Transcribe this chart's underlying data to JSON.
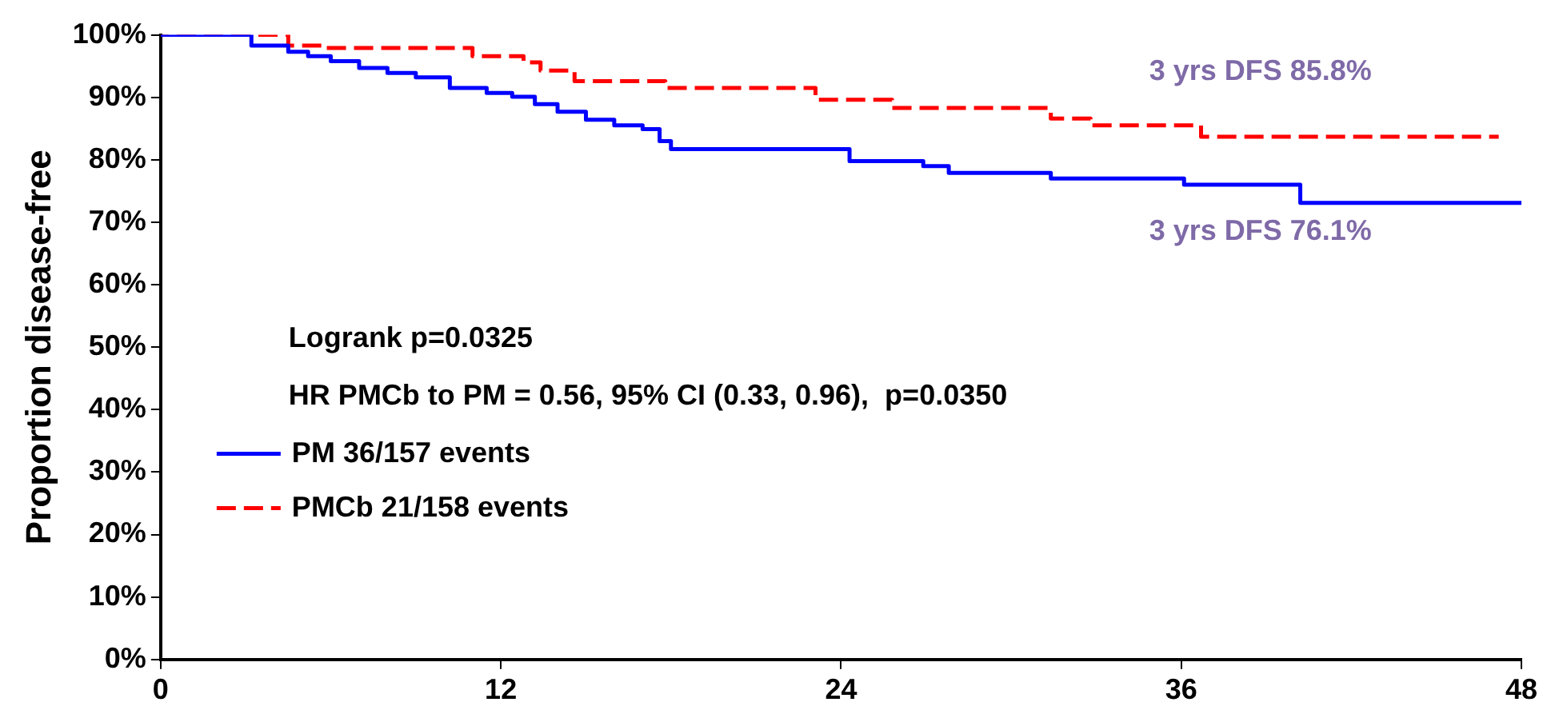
{
  "chart_data": {
    "type": "step",
    "ylabel": "Proportion disease-free",
    "xlim": [
      0,
      48
    ],
    "xticks": [
      0,
      12,
      24,
      36,
      48
    ],
    "ylim": [
      0,
      100
    ],
    "yticks": [
      {
        "value": 0,
        "label": "0%"
      },
      {
        "value": 10,
        "label": "10%"
      },
      {
        "value": 20,
        "label": "20%"
      },
      {
        "value": 30,
        "label": "30%"
      },
      {
        "value": 40,
        "label": "40%"
      },
      {
        "value": 50,
        "label": "50%"
      },
      {
        "value": 60,
        "label": "60%"
      },
      {
        "value": 70,
        "label": "70%"
      },
      {
        "value": 80,
        "label": "80%"
      },
      {
        "value": 90,
        "label": "90%"
      },
      {
        "value": 100,
        "label": "100%"
      }
    ],
    "grid": false,
    "legend": "left",
    "marker": "none",
    "series": [
      {
        "name": "PM 36/157 events",
        "color": "#0000ff",
        "line_style": "solid",
        "x": [
          0,
          3.2,
          4.5,
          5.2,
          6.0,
          7.0,
          8.0,
          9.0,
          10.2,
          11.5,
          12.4,
          13.2,
          14.0,
          15.0,
          16.0,
          17.0,
          17.6,
          18.0,
          24.3,
          26.9,
          27.8,
          31.4,
          36.1,
          40.2,
          48.0
        ],
        "values": [
          100,
          98.3,
          97.3,
          96.6,
          95.8,
          94.7,
          93.9,
          93.2,
          91.5,
          90.7,
          90.1,
          88.9,
          87.7,
          86.4,
          85.5,
          84.9,
          83,
          81.7,
          79.8,
          79.0,
          77.9,
          77.0,
          76.0,
          73.1,
          73.1
        ]
      },
      {
        "name": "PMCb 21/158 events",
        "color": "#ff0000",
        "line_style": "dashed",
        "x": [
          0,
          4.5,
          5.7,
          11.0,
          12.8,
          13.4,
          14.6,
          17.8,
          23.1,
          25.8,
          31.4,
          32.8,
          36.7,
          47.2
        ],
        "values": [
          100,
          98.3,
          97.9,
          96.6,
          95.6,
          94.3,
          92.6,
          91.5,
          89.6,
          88.3,
          86.6,
          85.5,
          83.7,
          83.7
        ]
      }
    ],
    "annotations": [
      "Logrank p=0.0325",
      "HR PMCb to PM = 0.56, 95% CI (0.33, 0.96),  p=0.0350",
      {
        "text": "3 yrs DFS 85.8%",
        "x": 36,
        "y": 85.8
      },
      {
        "text": "3 yrs DFS 76.1%",
        "x": 36,
        "y": 76.1
      }
    ]
  }
}
